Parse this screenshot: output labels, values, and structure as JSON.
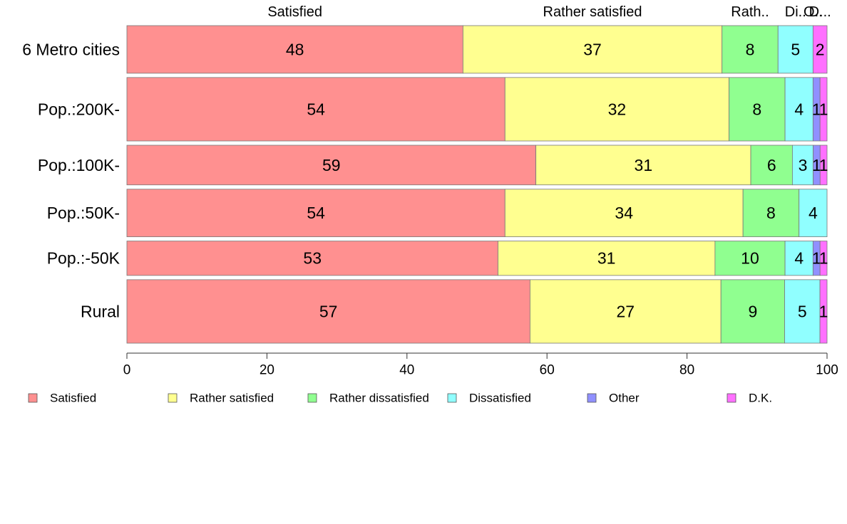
{
  "chart_data": {
    "type": "bar",
    "orientation": "horizontal",
    "stacked": true,
    "categories": [
      "6 Metro cities",
      "Pop.:200K-",
      "Pop.:100K-",
      "Pop.:50K-",
      "Pop.:-50K",
      "Rural"
    ],
    "relative_heights": [
      18,
      24,
      15,
      18,
      13,
      24
    ],
    "series": [
      {
        "name": "Satisfied",
        "color": "#ff9090",
        "values": [
          48,
          54,
          59,
          54,
          53,
          57
        ]
      },
      {
        "name": "Rather satisfied",
        "color": "#ffff90",
        "values": [
          37,
          32,
          31,
          34,
          31,
          27
        ]
      },
      {
        "name": "Rather dissatisfied",
        "color": "#90ff90",
        "values": [
          8,
          8,
          6,
          8,
          10,
          9
        ]
      },
      {
        "name": "Dissatisfied",
        "color": "#90ffff",
        "values": [
          5,
          4,
          3,
          4,
          4,
          5
        ]
      },
      {
        "name": "Other",
        "color": "#9090ff",
        "values": [
          0,
          1,
          1,
          0,
          1,
          0
        ]
      },
      {
        "name": "D.K.",
        "color": "#ff70ff",
        "values": [
          2,
          1,
          1,
          0,
          1,
          1
        ]
      }
    ],
    "top_labels": [
      "Satisfied",
      "Rather satisfied",
      "Rath..",
      "Di..",
      "O..",
      "D..."
    ],
    "xlim": [
      0,
      100
    ],
    "xticks": [
      "0",
      "20",
      "40",
      "60",
      "80",
      "100"
    ],
    "grid": false,
    "legend_position": "bottom"
  }
}
